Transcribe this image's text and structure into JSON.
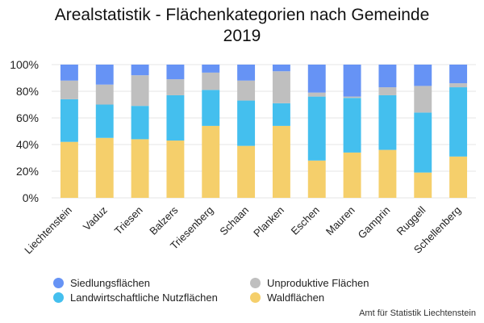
{
  "chart_data": {
    "type": "bar",
    "stacked": true,
    "title_line1": "Arealstatistik - Flächenkategorien nach Gemeinde",
    "title_line2": "2019",
    "categories": [
      "Liechtenstein",
      "Vaduz",
      "Triesen",
      "Balzers",
      "Triesenberg",
      "Schaan",
      "Planken",
      "Eschen",
      "Mauren",
      "Gamprin",
      "Ruggell",
      "Schellenberg"
    ],
    "series": [
      {
        "name": "Waldflächen",
        "color": "#F5CF6B",
        "values": [
          42,
          45,
          44,
          43,
          54,
          39,
          54,
          28,
          34,
          36,
          19,
          31
        ]
      },
      {
        "name": "Landwirtschaftliche Nutzflächen",
        "color": "#44BFEE",
        "values": [
          32,
          25,
          25,
          34,
          27,
          34,
          17,
          48,
          41,
          41,
          45,
          52
        ]
      },
      {
        "name": "Unproduktive Flächen",
        "color": "#BFBFBF",
        "values": [
          14,
          15,
          23,
          12,
          13,
          15,
          24,
          3,
          1,
          6,
          20,
          3
        ]
      },
      {
        "name": "Siedlungsflächen",
        "color": "#6693F5",
        "values": [
          12,
          15,
          8,
          11,
          6,
          12,
          5,
          21,
          24,
          17,
          16,
          14
        ]
      }
    ],
    "yticks": [
      "0%",
      "20%",
      "40%",
      "60%",
      "80%",
      "100%"
    ],
    "ylim": [
      0,
      100
    ],
    "grid": true,
    "legend_order": [
      "Siedlungsflächen",
      "Unproduktive Flächen",
      "Landwirtschaftliche Nutzflächen",
      "Waldflächen"
    ],
    "legend_position": "bottom-left"
  },
  "source": "Amt für Statistik Liechtenstein"
}
